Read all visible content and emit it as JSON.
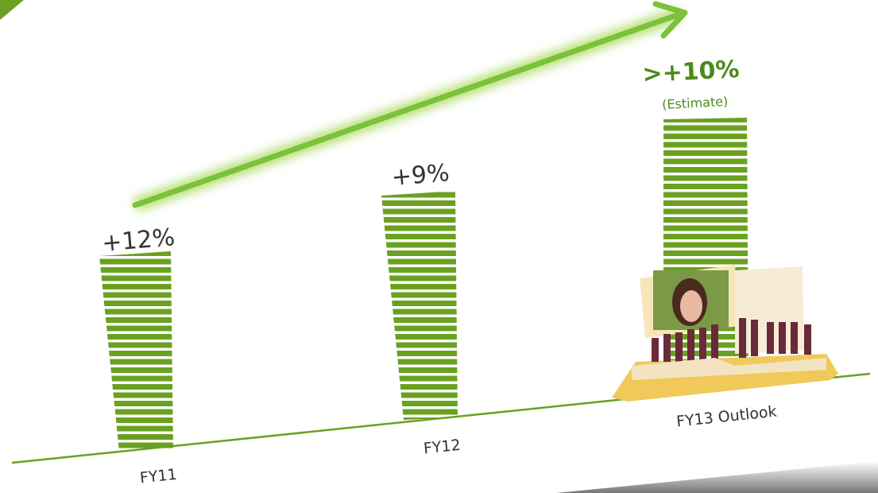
{
  "bars": [
    {
      "label": "+12%",
      "category": "FY11"
    },
    {
      "label": "+9%",
      "category": "FY12"
    },
    {
      "label": ">+10%",
      "note": "(Estimate)",
      "category": "FY13 Outlook"
    }
  ]
}
